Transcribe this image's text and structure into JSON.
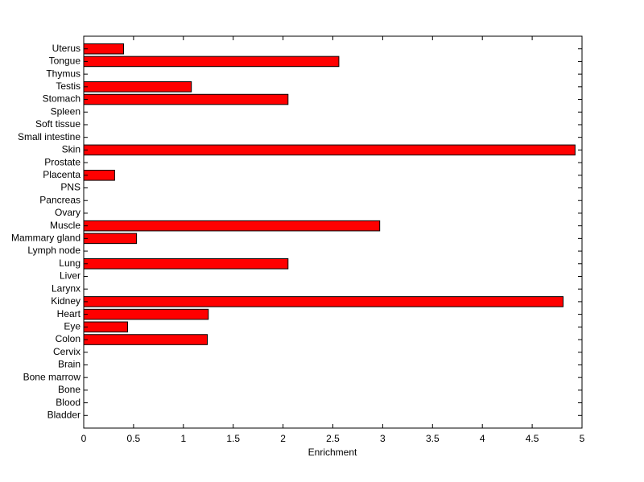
{
  "chart_data": {
    "type": "barh",
    "x_label": "Enrichment",
    "categories": [
      "Bladder",
      "Blood",
      "Bone",
      "Bone marrow",
      "Brain",
      "Cervix",
      "Colon",
      "Eye",
      "Heart",
      "Kidney",
      "Larynx",
      "Liver",
      "Lung",
      "Lymph node",
      "Mammary gland",
      "Muscle",
      "Ovary",
      "Pancreas",
      "PNS",
      "Placenta",
      "Prostate",
      "Skin",
      "Small intestine",
      "Soft tissue",
      "Spleen",
      "Stomach",
      "Testis",
      "Thymus",
      "Tongue",
      "Uterus"
    ],
    "values": [
      0,
      0,
      0,
      0,
      0,
      0,
      1.24,
      0.44,
      1.25,
      4.81,
      0,
      0,
      2.05,
      0,
      0.53,
      2.97,
      0,
      0,
      0,
      0.31,
      0,
      4.93,
      0,
      0,
      0,
      2.05,
      1.08,
      0,
      2.56,
      0.4
    ],
    "color": "#ff0000",
    "xlim": [
      0,
      5
    ],
    "xticks": [
      0,
      0.5,
      1,
      1.5,
      2,
      2.5,
      3,
      3.5,
      4,
      4.5,
      5
    ]
  }
}
